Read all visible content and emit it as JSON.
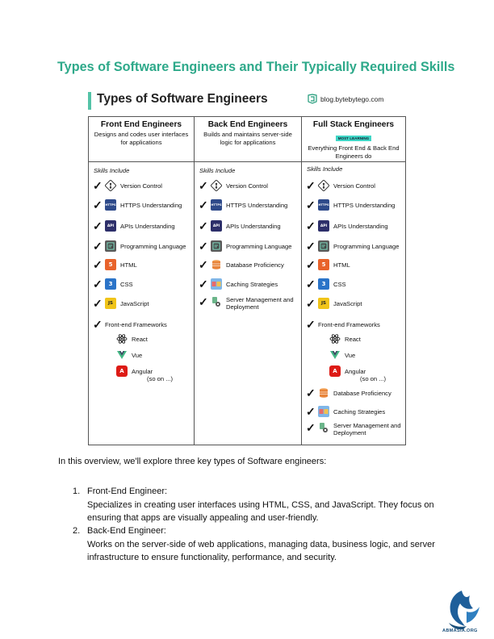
{
  "document": {
    "title": "Types of Software Engineers and Their Typically Required Skills",
    "intro": "In this overview, we'll explore three key types of Software engineers:",
    "list": [
      {
        "number": "1.",
        "title": "Front-End Engineer:",
        "text": "Specializes in creating user interfaces using HTML, CSS, and JavaScript. They focus on ensuring that apps are visually appealing and user-friendly."
      },
      {
        "number": "2.",
        "title": "Back-End Engineer:",
        "text": "Works on the server-side of web applications, managing data, business logic, and server infrastructure to ensure functionality, performance, and security."
      }
    ],
    "watermark": "ABMASIA.ORG"
  },
  "figure": {
    "heading": "Types of Software Engineers",
    "brand": "blog.bytebytego.com",
    "skills_label": "Skills Include",
    "columns": [
      {
        "title": "Front End Engineers",
        "desc": "Designs and codes user interfaces for applications",
        "skills": [
          "Version Control",
          "HTTPS Understanding",
          "APIs Understanding",
          "Programming Language",
          "HTML",
          "CSS",
          "JavaScript",
          "Front-end Frameworks"
        ],
        "frameworks": [
          "React",
          "Vue",
          "Angular"
        ],
        "so_on": "(so on ...)"
      },
      {
        "title": "Back End Engineers",
        "desc": "Builds and maintains server-side logic for applications",
        "skills": [
          "Version Control",
          "HTTPS Understanding",
          "APIs Understanding",
          "Programming Language",
          "Database Proficiency",
          "Caching Strategies",
          "Server Management and Deployment"
        ]
      },
      {
        "title": "Full Stack Engineers",
        "badge": "MOST LEARNING",
        "desc": "Everything Front End & Back End Engineers do",
        "skills": [
          "Version Control",
          "HTTPS Understanding",
          "APIs Understanding",
          "Programming Language",
          "HTML",
          "CSS",
          "Front-end Frameworks"
        ],
        "frameworks": [
          "React",
          "Vue",
          "Angular"
        ],
        "so_on": "(so on ...)",
        "extra_skills": [
          "Database Proficiency",
          "Caching Strategies",
          "Server Management and Deployment"
        ]
      }
    ],
    "check_glyph": "✓",
    "icons": {
      "https": "HTTPS",
      "api": "API",
      "html": "5",
      "css": "3",
      "js": "JS",
      "angular": "A"
    },
    "colors": {
      "title_green": "#2ea98a",
      "bar": "#54c3a7",
      "badge": "#3fd6c6",
      "html": "#e8632b",
      "css": "#2b74c8",
      "js": "#f0c419",
      "vue": "#41b883",
      "angular": "#dd1b16",
      "react": "#222222",
      "db": "#e8843a"
    }
  }
}
